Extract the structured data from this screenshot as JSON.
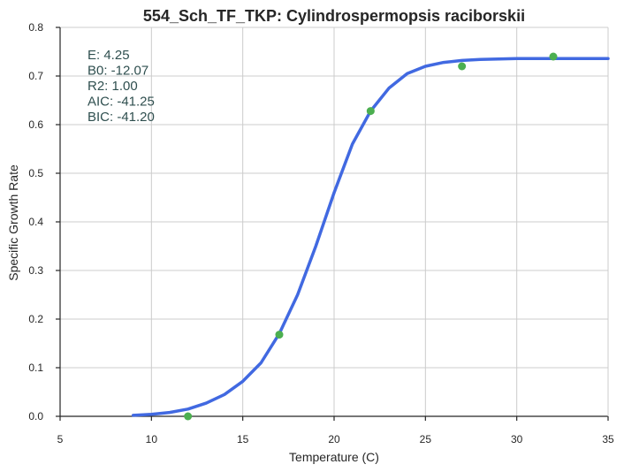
{
  "chart_data": {
    "type": "line",
    "title": "554_Sch_TF_TKP: Cylindrospermopsis raciborskii",
    "xlabel": "Temperature (C)",
    "ylabel": "Specific Growth Rate",
    "xlim": [
      5,
      35
    ],
    "ylim": [
      0,
      0.8
    ],
    "x_ticks": [
      "5",
      "10",
      "15",
      "20",
      "25",
      "30",
      "35"
    ],
    "y_ticks": [
      "0.0",
      "0.1",
      "0.2",
      "0.3",
      "0.4",
      "0.5",
      "0.6",
      "0.7",
      "0.8"
    ],
    "grid": true,
    "annotations": [
      "E:  4.25",
      "B0:  -12.07",
      "R2:  1.00",
      "AIC: -41.25",
      "BIC: -41.20"
    ],
    "series": [
      {
        "kind": "scatter",
        "color": "#4caf50",
        "x": [
          12,
          17,
          22,
          27,
          32
        ],
        "y": [
          0.0,
          0.168,
          0.628,
          0.72,
          0.74
        ]
      },
      {
        "kind": "line",
        "color": "#4169e1",
        "x": [
          9,
          10,
          11,
          12,
          13,
          14,
          15,
          16,
          17,
          18,
          19,
          20,
          21,
          22,
          23,
          24,
          25,
          26,
          27,
          28,
          29,
          30,
          31,
          32,
          33,
          34,
          35
        ],
        "y": [
          0.002,
          0.004,
          0.008,
          0.015,
          0.027,
          0.045,
          0.072,
          0.11,
          0.17,
          0.25,
          0.35,
          0.46,
          0.56,
          0.628,
          0.675,
          0.705,
          0.72,
          0.728,
          0.732,
          0.734,
          0.735,
          0.736,
          0.736,
          0.736,
          0.736,
          0.736,
          0.736
        ]
      }
    ]
  }
}
